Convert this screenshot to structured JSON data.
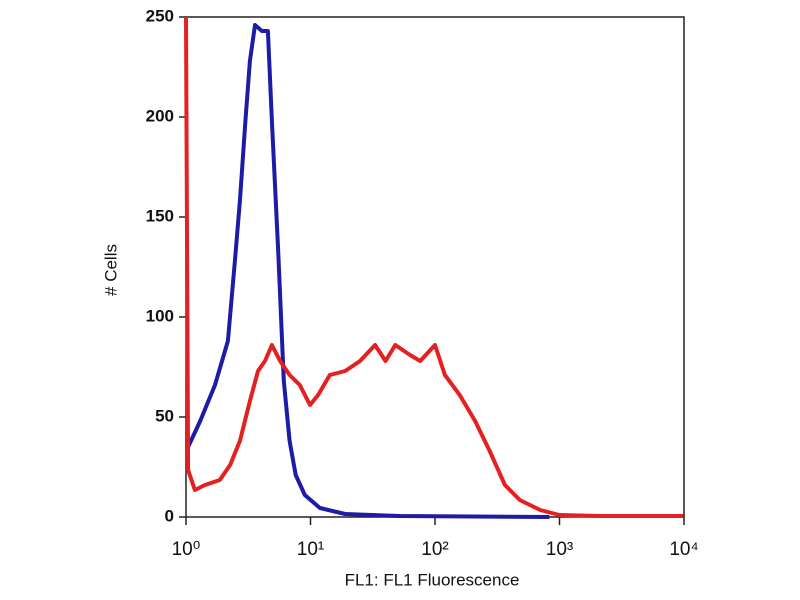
{
  "chart_data": {
    "type": "line",
    "xlabel": "FL1: FL1 Fluorescence",
    "ylabel": "# Cells",
    "xscale": "log",
    "xlim": [
      1,
      10000
    ],
    "ylim": [
      0,
      250
    ],
    "xticks": [
      {
        "value": 1,
        "label": "10⁰"
      },
      {
        "value": 10,
        "label": "10¹"
      },
      {
        "value": 100,
        "label": "10²"
      },
      {
        "value": 1000,
        "label": "10³"
      },
      {
        "value": 10000,
        "label": "10⁴"
      }
    ],
    "yticks": [
      0,
      50,
      100,
      150,
      200,
      250
    ],
    "series": [
      {
        "color": "#1c1ca6",
        "x": [
          1.04,
          1.3,
          1.71,
          2.17,
          2.47,
          2.71,
          3.0,
          3.26,
          3.58,
          4.07,
          4.55,
          4.9,
          5.5,
          6.1,
          6.8,
          7.6,
          9.0,
          11.9,
          19,
          52,
          830
        ],
        "values": [
          35,
          48,
          66,
          88,
          128,
          158,
          198,
          228,
          246,
          243,
          243,
          198,
          133,
          68,
          38,
          21,
          11,
          4.5,
          1.5,
          0.5,
          0
        ]
      },
      {
        "color": "#e42020",
        "x": [
          1,
          1.04,
          1.18,
          1.42,
          1.87,
          2.26,
          2.71,
          3.26,
          3.79,
          4.31,
          4.9,
          5.7,
          6.8,
          8.2,
          9.9,
          11.5,
          14.3,
          19,
          25,
          33,
          40,
          48,
          63,
          76,
          100,
          120,
          158,
          210,
          275,
          364,
          480,
          700,
          1000,
          2100,
          9900
        ],
        "values": [
          250,
          23.5,
          13.5,
          16,
          18.5,
          26,
          38,
          58,
          73,
          78,
          86,
          78,
          71,
          66,
          56,
          61,
          71,
          73,
          78,
          86,
          78,
          86,
          81,
          78,
          86,
          71,
          61,
          48,
          33,
          16,
          8.5,
          3.5,
          1,
          0.5,
          0.5
        ]
      }
    ]
  }
}
